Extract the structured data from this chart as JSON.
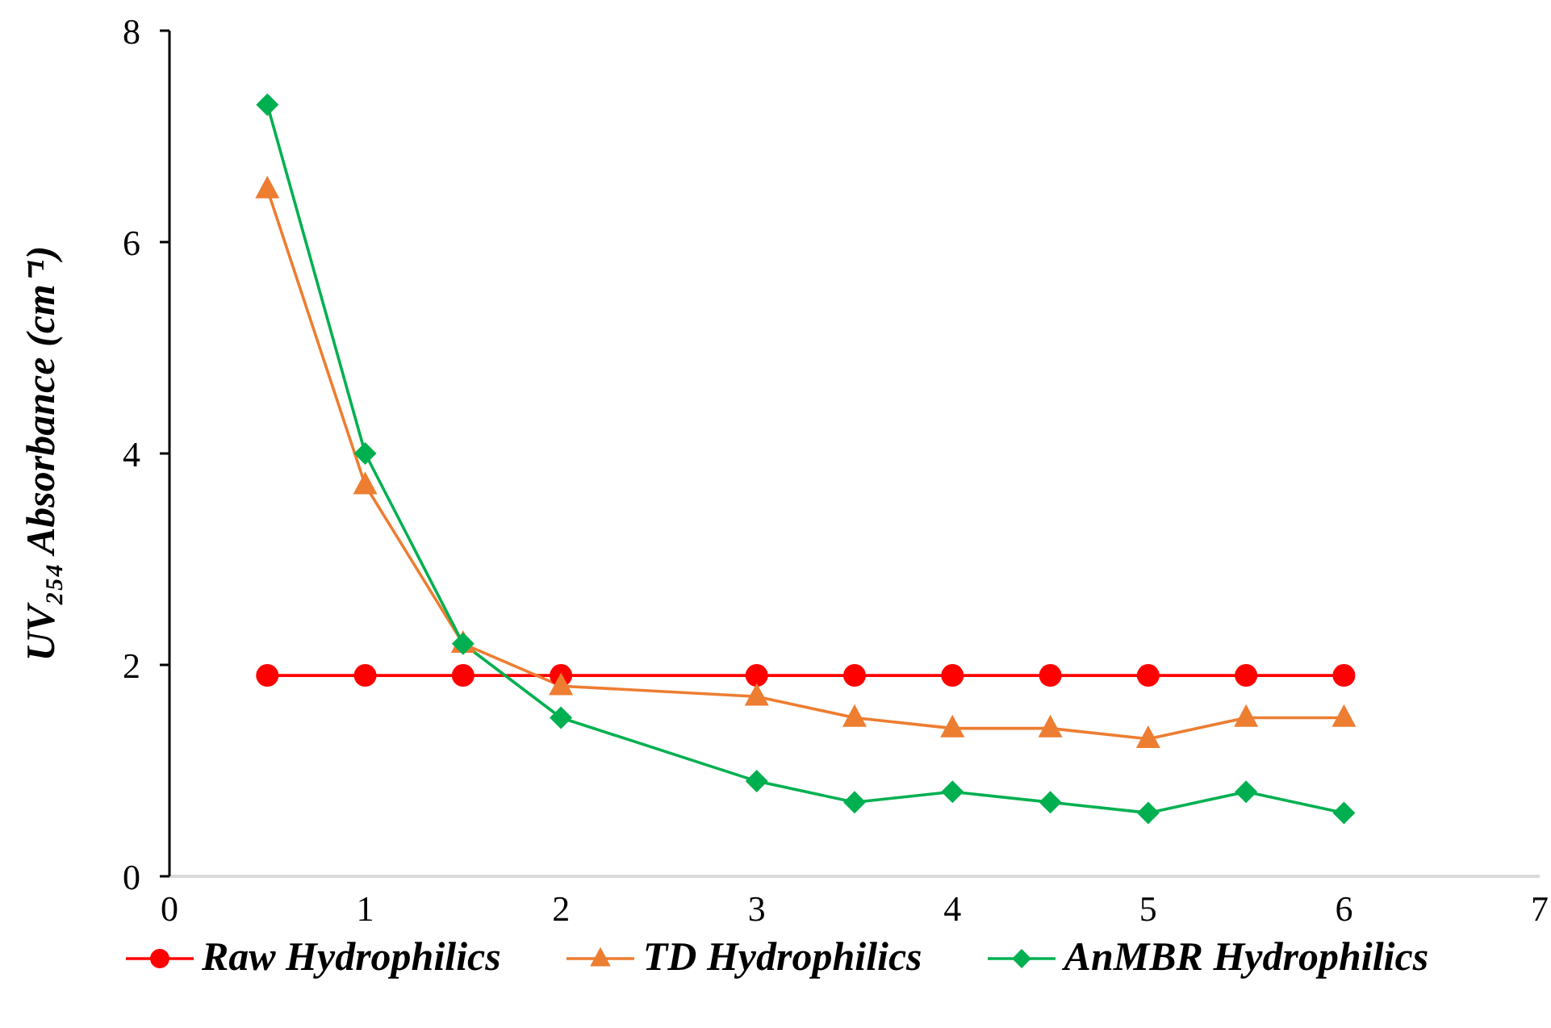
{
  "chart_data": {
    "type": "line",
    "ylabel": "UV₂₅₄ Absorbance (cm⁻¹)",
    "x": [
      0.5,
      1,
      1.5,
      2,
      3,
      3.5,
      4,
      4.5,
      5,
      5.5,
      6
    ],
    "series": [
      {
        "name": "Raw Hydrophilics",
        "color": "#ff0000",
        "marker": "circle",
        "values": [
          1.9,
          1.9,
          1.9,
          1.9,
          1.9,
          1.9,
          1.9,
          1.9,
          1.9,
          1.9,
          1.9
        ]
      },
      {
        "name": "TD Hydrophilics",
        "color": "#ed7d31",
        "marker": "triangle",
        "values": [
          6.5,
          3.7,
          2.2,
          1.8,
          1.7,
          1.5,
          1.4,
          1.4,
          1.3,
          1.5,
          1.5
        ]
      },
      {
        "name": "AnMBR Hydrophilics",
        "color": "#00b050",
        "marker": "diamond",
        "values": [
          7.3,
          4.0,
          2.2,
          1.5,
          0.9,
          0.7,
          0.8,
          0.7,
          0.6,
          0.8,
          0.6
        ]
      }
    ],
    "xlim": [
      0,
      7
    ],
    "xticks": [
      0,
      1,
      2,
      3,
      4,
      5,
      6,
      7
    ],
    "ylim": [
      0,
      8
    ],
    "yticks": [
      0,
      2,
      4,
      6,
      8
    ],
    "legend": "bottom"
  }
}
